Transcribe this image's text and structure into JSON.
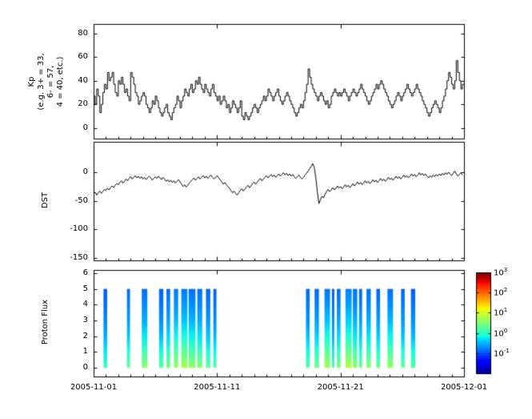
{
  "figure": {
    "background": "#ffffff",
    "frame_color": "#000000",
    "line_color": "#000000"
  },
  "xaxis": {
    "range_days": [
      0,
      30
    ],
    "minor_tick_step_days": 1,
    "ticks": [
      {
        "day": 0,
        "label": "2005-11-01"
      },
      {
        "day": 10,
        "label": "2005-11-11"
      },
      {
        "day": 20,
        "label": "2005-11-21"
      },
      {
        "day": 30,
        "label": "2005-12-01"
      }
    ]
  },
  "chart_data": [
    {
      "type": "line",
      "id": "kp",
      "title": "",
      "xlabel": "",
      "ylabel": "Kp\n(e.g. 3+ = 33,\n6- = 57,\n4 = 40, etc.)",
      "ylim": [
        -9,
        88
      ],
      "yticks": [
        0,
        20,
        40,
        60,
        80
      ],
      "step": true,
      "x_start_day": 0,
      "x_step_days": 0.125,
      "values": [
        27,
        20,
        33,
        27,
        13,
        20,
        30,
        37,
        33,
        47,
        40,
        43,
        47,
        37,
        30,
        27,
        40,
        37,
        43,
        37,
        30,
        33,
        27,
        23,
        47,
        43,
        37,
        30,
        27,
        20,
        23,
        27,
        30,
        27,
        20,
        17,
        13,
        17,
        23,
        20,
        27,
        23,
        17,
        13,
        10,
        13,
        17,
        20,
        13,
        10,
        7,
        13,
        17,
        20,
        27,
        23,
        17,
        23,
        27,
        33,
        30,
        27,
        33,
        37,
        30,
        33,
        40,
        37,
        43,
        37,
        33,
        30,
        37,
        33,
        30,
        27,
        33,
        37,
        30,
        27,
        23,
        27,
        20,
        23,
        27,
        23,
        17,
        20,
        13,
        17,
        23,
        20,
        17,
        13,
        17,
        23,
        10,
        7,
        13,
        10,
        7,
        10,
        13,
        17,
        20,
        17,
        13,
        17,
        20,
        23,
        27,
        23,
        27,
        33,
        30,
        27,
        23,
        27,
        30,
        33,
        27,
        23,
        20,
        23,
        27,
        30,
        27,
        23,
        20,
        17,
        13,
        10,
        13,
        17,
        20,
        17,
        23,
        30,
        37,
        50,
        43,
        37,
        33,
        30,
        27,
        23,
        27,
        30,
        27,
        23,
        20,
        23,
        17,
        20,
        27,
        30,
        33,
        30,
        27,
        30,
        27,
        30,
        33,
        30,
        27,
        23,
        27,
        30,
        33,
        30,
        27,
        30,
        33,
        37,
        33,
        30,
        27,
        23,
        20,
        23,
        27,
        30,
        33,
        37,
        33,
        37,
        40,
        37,
        33,
        30,
        27,
        23,
        20,
        17,
        20,
        23,
        27,
        30,
        27,
        23,
        27,
        30,
        33,
        37,
        33,
        30,
        27,
        30,
        33,
        37,
        33,
        30,
        27,
        23,
        20,
        17,
        13,
        10,
        13,
        17,
        20,
        23,
        20,
        17,
        13,
        17,
        23,
        27,
        33,
        40,
        47,
        43,
        37,
        33,
        40,
        57,
        47,
        40,
        33,
        37
      ]
    },
    {
      "type": "line",
      "id": "dst",
      "title": "",
      "xlabel": "",
      "ylabel": "DST",
      "ylim": [
        -154,
        53
      ],
      "yticks": [
        0,
        -50,
        -100,
        -150
      ],
      "step": false,
      "x_start_day": 0,
      "x_step_days": 0.125,
      "values": [
        -38,
        -35,
        -40,
        -36,
        -33,
        -37,
        -34,
        -30,
        -32,
        -28,
        -31,
        -27,
        -24,
        -27,
        -23,
        -20,
        -22,
        -18,
        -15,
        -19,
        -16,
        -12,
        -15,
        -11,
        -8,
        -12,
        -9,
        -6,
        -10,
        -7,
        -11,
        -8,
        -12,
        -9,
        -13,
        -10,
        -7,
        -10,
        -14,
        -11,
        -8,
        -11,
        -7,
        -10,
        -13,
        -9,
        -12,
        -16,
        -13,
        -17,
        -14,
        -18,
        -15,
        -19,
        -16,
        -13,
        -17,
        -21,
        -25,
        -22,
        -26,
        -23,
        -19,
        -16,
        -13,
        -10,
        -14,
        -11,
        -8,
        -12,
        -9,
        -6,
        -10,
        -7,
        -11,
        -8,
        -5,
        -9,
        -12,
        -9,
        -6,
        -10,
        -13,
        -17,
        -21,
        -18,
        -22,
        -25,
        -28,
        -32,
        -36,
        -33,
        -37,
        -40,
        -36,
        -32,
        -29,
        -33,
        -30,
        -26,
        -23,
        -27,
        -24,
        -20,
        -17,
        -21,
        -18,
        -14,
        -11,
        -15,
        -12,
        -9,
        -6,
        -10,
        -7,
        -4,
        -8,
        -5,
        -9,
        -6,
        -3,
        -7,
        -4,
        -1,
        -5,
        -2,
        -6,
        -3,
        -7,
        -4,
        -8,
        -11,
        -8,
        -5,
        -9,
        -12,
        -9,
        -5,
        -2,
        2,
        6,
        10,
        15,
        8,
        -10,
        -35,
        -55,
        -48,
        -42,
        -45,
        -38,
        -34,
        -30,
        -34,
        -31,
        -27,
        -31,
        -28,
        -24,
        -28,
        -25,
        -29,
        -26,
        -22,
        -26,
        -23,
        -27,
        -24,
        -20,
        -24,
        -21,
        -17,
        -21,
        -18,
        -22,
        -19,
        -15,
        -19,
        -16,
        -20,
        -17,
        -13,
        -17,
        -14,
        -18,
        -15,
        -11,
        -15,
        -12,
        -16,
        -13,
        -9,
        -13,
        -10,
        -14,
        -11,
        -7,
        -11,
        -8,
        -12,
        -9,
        -5,
        -9,
        -6,
        -10,
        -7,
        -3,
        -7,
        -4,
        -8,
        -5,
        -1,
        -5,
        -2,
        -6,
        -3,
        -7,
        -10,
        -6,
        -9,
        -5,
        -8,
        -4,
        -7,
        -3,
        -6,
        -2,
        -5,
        -1,
        -4,
        0,
        -3,
        -6,
        -2,
        2,
        -3,
        -7,
        -4,
        -1,
        -5
      ]
    },
    {
      "type": "heatmap",
      "id": "proton_flux",
      "title": "",
      "xlabel": "",
      "ylabel": "Proton Flux",
      "ylim": [
        -0.56,
        6.2
      ],
      "yticks": [
        0,
        1,
        2,
        3,
        4,
        5,
        6
      ],
      "bar_y_range": [
        0,
        5
      ],
      "colorbar": {
        "scale": "log",
        "colormap": "jet",
        "exp_range": [
          -2,
          3
        ],
        "tick_exponents": [
          3,
          2,
          1,
          0,
          -1
        ]
      },
      "columns": [
        {
          "day": 0.8,
          "w": 0.3,
          "flux": [
            1.5,
            0.6,
            0.3,
            0.2,
            0.15,
            0.12
          ]
        },
        {
          "day": 2.7,
          "w": 0.25,
          "flux": [
            2.5,
            0.9,
            0.4,
            0.25,
            0.18,
            0.14
          ]
        },
        {
          "day": 3.9,
          "w": 0.45,
          "flux": [
            4.0,
            1.5,
            0.6,
            0.3,
            0.2,
            0.15
          ]
        },
        {
          "day": 5.3,
          "w": 0.35,
          "flux": [
            2.0,
            0.8,
            0.35,
            0.22,
            0.16,
            0.13
          ]
        },
        {
          "day": 5.9,
          "w": 0.3,
          "flux": [
            3.0,
            1.1,
            0.5,
            0.28,
            0.19,
            0.14
          ]
        },
        {
          "day": 6.5,
          "w": 0.35,
          "flux": [
            5.0,
            1.8,
            0.7,
            0.35,
            0.22,
            0.16
          ]
        },
        {
          "day": 7.1,
          "w": 0.5,
          "flux": [
            6.0,
            2.2,
            0.8,
            0.4,
            0.25,
            0.17
          ]
        },
        {
          "day": 7.7,
          "w": 0.55,
          "flux": [
            4.5,
            1.6,
            0.65,
            0.32,
            0.21,
            0.15
          ]
        },
        {
          "day": 8.4,
          "w": 0.4,
          "flux": [
            3.5,
            1.3,
            0.55,
            0.3,
            0.2,
            0.15
          ]
        },
        {
          "day": 9.1,
          "w": 0.35,
          "flux": [
            2.2,
            0.85,
            0.4,
            0.24,
            0.17,
            0.13
          ]
        },
        {
          "day": 9.7,
          "w": 0.25,
          "flux": [
            1.8,
            0.7,
            0.33,
            0.21,
            0.16,
            0.12
          ]
        },
        {
          "day": 17.2,
          "w": 0.3,
          "flux": [
            2.0,
            0.8,
            0.38,
            0.23,
            0.17,
            0.13
          ]
        },
        {
          "day": 17.9,
          "w": 0.35,
          "flux": [
            2.8,
            1.0,
            0.45,
            0.26,
            0.18,
            0.14
          ]
        },
        {
          "day": 18.7,
          "w": 0.45,
          "flux": [
            5.5,
            2.0,
            0.75,
            0.38,
            0.23,
            0.16
          ]
        },
        {
          "day": 19.3,
          "w": 0.2,
          "flux": [
            1.6,
            0.65,
            0.3,
            0.2,
            0.15,
            0.12
          ]
        },
        {
          "day": 19.7,
          "w": 0.3,
          "flux": [
            3.2,
            1.2,
            0.5,
            0.28,
            0.19,
            0.14
          ]
        },
        {
          "day": 20.4,
          "w": 0.5,
          "flux": [
            7.0,
            2.5,
            0.9,
            0.45,
            0.26,
            0.18
          ]
        },
        {
          "day": 21.0,
          "w": 0.35,
          "flux": [
            4.2,
            1.5,
            0.6,
            0.32,
            0.2,
            0.15
          ]
        },
        {
          "day": 21.5,
          "w": 0.25,
          "flux": [
            2.4,
            0.9,
            0.42,
            0.25,
            0.17,
            0.13
          ]
        },
        {
          "day": 22.1,
          "w": 0.35,
          "flux": [
            3.8,
            1.4,
            0.58,
            0.3,
            0.2,
            0.15
          ]
        },
        {
          "day": 22.9,
          "w": 0.3,
          "flux": [
            2.6,
            1.0,
            0.44,
            0.26,
            0.18,
            0.13
          ]
        },
        {
          "day": 23.8,
          "w": 0.45,
          "flux": [
            4.8,
            1.7,
            0.68,
            0.34,
            0.21,
            0.15
          ]
        },
        {
          "day": 24.9,
          "w": 0.3,
          "flux": [
            2.2,
            0.85,
            0.4,
            0.24,
            0.17,
            0.13
          ]
        },
        {
          "day": 25.7,
          "w": 0.35,
          "flux": [
            1.9,
            0.75,
            0.35,
            0.22,
            0.16,
            0.12
          ]
        }
      ]
    }
  ]
}
